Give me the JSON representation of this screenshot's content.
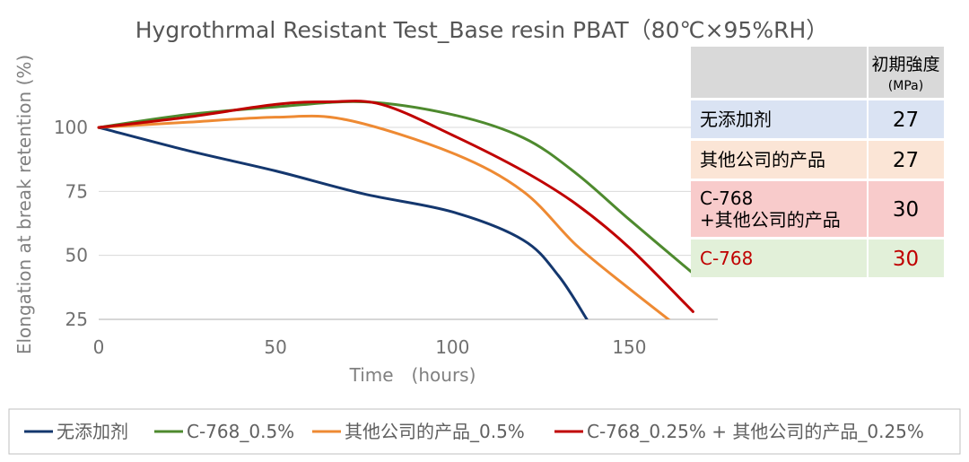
{
  "chart_data": {
    "type": "line",
    "title": "Hygrothrmal Resistant Test_Base resin PBAT（80℃×95%RH）",
    "xlabel": "Time　(hours)",
    "ylabel": "Elongation at break retention (%)",
    "xlim": [
      0,
      175
    ],
    "ylim": [
      25,
      120
    ],
    "xticks": [
      0,
      50,
      100,
      150
    ],
    "yticks": [
      25,
      50,
      75,
      100
    ],
    "grid": true,
    "legend_position": "bottom",
    "series": [
      {
        "name": "无添加剂",
        "color": "#14376e",
        "points": [
          [
            0,
            100
          ],
          [
            25,
            91
          ],
          [
            50,
            83
          ],
          [
            75,
            74
          ],
          [
            100,
            67
          ],
          [
            120,
            56
          ],
          [
            130,
            42
          ],
          [
            138,
            25
          ]
        ]
      },
      {
        "name": "C-768_0.5%",
        "color": "#4e8a2e",
        "points": [
          [
            0,
            100
          ],
          [
            25,
            105
          ],
          [
            50,
            108
          ],
          [
            75,
            110
          ],
          [
            100,
            105
          ],
          [
            120,
            96
          ],
          [
            135,
            82
          ],
          [
            150,
            64
          ],
          [
            168,
            43
          ]
        ]
      },
      {
        "name": "其他公司的产品_0.5%",
        "color": "#ee8a33",
        "points": [
          [
            0,
            100
          ],
          [
            25,
            102
          ],
          [
            50,
            104
          ],
          [
            70,
            103
          ],
          [
            100,
            90
          ],
          [
            120,
            75
          ],
          [
            135,
            54
          ],
          [
            150,
            37
          ],
          [
            162,
            24
          ]
        ]
      },
      {
        "name": "C-768_0.25% + 其他公司的产品_0.25%",
        "color": "#c00000",
        "points": [
          [
            0,
            100
          ],
          [
            25,
            104
          ],
          [
            50,
            109
          ],
          [
            65,
            110
          ],
          [
            80,
            109
          ],
          [
            100,
            97
          ],
          [
            120,
            83
          ],
          [
            135,
            70
          ],
          [
            150,
            53
          ],
          [
            168,
            28
          ]
        ]
      }
    ],
    "table": {
      "header": "初期強度",
      "header_unit": "(MPa)",
      "rows": [
        {
          "label": "无添加剂",
          "value": "27",
          "bg": "#dae3f3",
          "red": false
        },
        {
          "label": "其他公司的产品",
          "value": "27",
          "bg": "#fbe5d6",
          "red": false
        },
        {
          "label": "C-768\n+其他公司的产品",
          "value": "30",
          "bg": "#f8cbcb",
          "red": false
        },
        {
          "label": "C-768",
          "value": "30",
          "bg": "#e2f0d9",
          "red": true
        }
      ]
    }
  }
}
